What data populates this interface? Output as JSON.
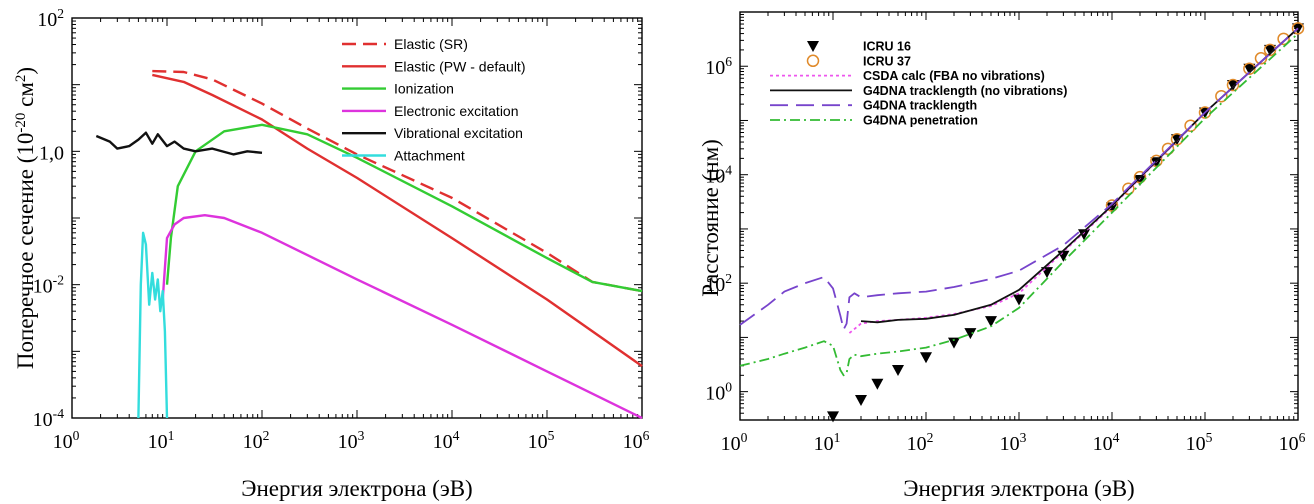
{
  "chart_data": [
    {
      "type": "line",
      "xlabel": "Энергия электрона (эВ)",
      "ylabel_main": "Поперечное сечение (10",
      "ylabel_sup": "-20",
      "ylabel_mid": " см",
      "ylabel_sup2": "2",
      "ylabel_end": ")",
      "x_scale": "log",
      "y_scale": "log",
      "xlim": [
        1,
        1000000
      ],
      "ylim": [
        0.0001,
        100
      ],
      "x_ticks": [
        {
          "base": "10",
          "exp": "0"
        },
        {
          "base": "10",
          "exp": "1"
        },
        {
          "base": "10",
          "exp": "2"
        },
        {
          "base": "10",
          "exp": "3"
        },
        {
          "base": "10",
          "exp": "4"
        },
        {
          "base": "10",
          "exp": "5"
        },
        {
          "base": "10",
          "exp": "6"
        }
      ],
      "y_ticks": [
        {
          "base": "10",
          "exp": "2"
        },
        {
          "base": "1,0",
          "exp": ""
        },
        {
          "base": "10",
          "exp": "-2"
        },
        {
          "base": "10",
          "exp": "-4"
        }
      ],
      "legend_position": "top-right",
      "series": [
        {
          "name": "Elastic (SR)",
          "color": "#e03030",
          "dash": "dashed",
          "x": [
            7,
            15,
            30,
            100,
            300,
            1000,
            10000,
            100000,
            300000,
            1000000
          ],
          "y": [
            16,
            15.5,
            12,
            5.2,
            2.2,
            0.9,
            0.2,
            0.03,
            0.011,
            0.008
          ]
        },
        {
          "name": "Elastic (PW - default)",
          "color": "#e03030",
          "dash": "solid",
          "x": [
            7,
            15,
            30,
            100,
            300,
            1000,
            10000,
            100000,
            1000000
          ],
          "y": [
            14,
            11,
            7,
            3,
            1.1,
            0.4,
            0.05,
            0.006,
            0.0006
          ]
        },
        {
          "name": "Ionization",
          "color": "#33cc33",
          "dash": "solid",
          "x": [
            10,
            11,
            13,
            20,
            40,
            100,
            300,
            1000,
            10000,
            100000,
            300000,
            1000000
          ],
          "y": [
            0.01,
            0.05,
            0.3,
            1,
            2,
            2.5,
            1.8,
            0.8,
            0.15,
            0.025,
            0.011,
            0.008
          ]
        },
        {
          "name": "Electronic excitation",
          "color": "#dd33dd",
          "dash": "solid",
          "x": [
            9,
            10,
            12,
            15,
            25,
            40,
            100,
            1000,
            10000,
            100000,
            1000000
          ],
          "y": [
            0.006,
            0.05,
            0.08,
            0.1,
            0.11,
            0.1,
            0.06,
            0.012,
            0.0025,
            0.0005,
            0.0001
          ]
        },
        {
          "name": "Vibrational excitation",
          "color": "#111111",
          "dash": "solid",
          "x": [
            1.8,
            2.5,
            3,
            4,
            5,
            6,
            7,
            8,
            10,
            12,
            15,
            20,
            30,
            50,
            70,
            100
          ],
          "y": [
            1.7,
            1.4,
            1.1,
            1.2,
            1.5,
            1.9,
            1.3,
            1.8,
            1.2,
            1.4,
            1.1,
            1.0,
            1.1,
            0.9,
            1.0,
            0.95
          ]
        },
        {
          "name": "Attachment",
          "color": "#33dddd",
          "dash": "solid",
          "x": [
            5,
            5.3,
            5.6,
            6,
            6.5,
            7,
            7.5,
            8,
            8.5,
            9,
            9.5,
            10
          ],
          "y": [
            0.0001,
            0.01,
            0.06,
            0.04,
            0.005,
            0.015,
            0.006,
            0.012,
            0.004,
            0.008,
            0.002,
            0.0001
          ]
        }
      ]
    },
    {
      "type": "line",
      "xlabel": "Энергия электрона (эВ)",
      "ylabel": "Расстояние (нм)",
      "x_scale": "log",
      "y_scale": "log",
      "xlim": [
        1,
        1000000
      ],
      "ylim": [
        0.3,
        10000000
      ],
      "x_ticks": [
        {
          "base": "10",
          "exp": "0"
        },
        {
          "base": "10",
          "exp": "1"
        },
        {
          "base": "10",
          "exp": "2"
        },
        {
          "base": "10",
          "exp": "3"
        },
        {
          "base": "10",
          "exp": "4"
        },
        {
          "base": "10",
          "exp": "5"
        },
        {
          "base": "10",
          "exp": "6"
        }
      ],
      "y_ticks": [
        {
          "base": "10",
          "exp": "0"
        },
        {
          "base": "10",
          "exp": "2"
        },
        {
          "base": "10",
          "exp": "4"
        },
        {
          "base": "10",
          "exp": "6"
        }
      ],
      "legend_position": "top-left",
      "series": [
        {
          "name": "ICRU 16",
          "color": "#000000",
          "marker": "triangle-down",
          "x": [
            10,
            20,
            30,
            50,
            100,
            200,
            300,
            500,
            1000,
            2000,
            3000,
            5000,
            10000,
            20000,
            30000,
            50000,
            100000,
            200000,
            300000,
            500000,
            1000000
          ],
          "y": [
            0.35,
            0.7,
            1.4,
            2.5,
            4.3,
            8,
            12,
            20,
            50,
            160,
            320,
            800,
            2500,
            8000,
            17000,
            45000,
            140000,
            450000,
            900000,
            2000000,
            5000000
          ]
        },
        {
          "name": "ICRU 37",
          "color": "#e08a2a",
          "marker": "circle-open",
          "x": [
            10000,
            15000,
            20000,
            30000,
            40000,
            50000,
            70000,
            100000,
            150000,
            200000,
            300000,
            400000,
            500000,
            700000,
            1000000
          ],
          "y": [
            2700,
            5500,
            9000,
            18000,
            30000,
            45000,
            80000,
            140000,
            280000,
            450000,
            900000,
            1400000,
            2000000,
            3200000,
            5000000
          ]
        },
        {
          "name": "CSDA calc (FBA no vibrations)",
          "color": "#ee55ee",
          "dash": "dotted",
          "x": [
            15,
            20,
            30,
            50,
            100,
            200,
            500,
            1000,
            3000,
            10000,
            100000,
            1000000
          ],
          "y": [
            12,
            18,
            20,
            21,
            23,
            27,
            38,
            65,
            380,
            2600,
            140000,
            5000000
          ]
        },
        {
          "name": "G4DNA tracklength (no vibrations)",
          "color": "#111111",
          "dash": "solid",
          "x": [
            20,
            30,
            50,
            100,
            200,
            500,
            1000,
            3000,
            10000,
            100000,
            1000000
          ],
          "y": [
            20,
            19,
            21,
            22,
            26,
            40,
            75,
            400,
            2700,
            140000,
            5000000
          ]
        },
        {
          "name": "G4DNA tracklength",
          "color": "#7744cc",
          "dash": "long-dash",
          "x": [
            1,
            2,
            3,
            5,
            8,
            10,
            12,
            13,
            14,
            15,
            17,
            20,
            30,
            50,
            100,
            200,
            500,
            1000,
            3000,
            10000,
            100000,
            1000000
          ],
          "y": [
            17,
            40,
            70,
            100,
            130,
            80,
            25,
            14,
            18,
            55,
            65,
            55,
            60,
            65,
            70,
            85,
            120,
            170,
            500,
            2900,
            140000,
            5000000
          ]
        },
        {
          "name": "G4DNA penetration",
          "color": "#33bb33",
          "dash": "dash-dot",
          "x": [
            1,
            2,
            3,
            5,
            8,
            10,
            12,
            13,
            14,
            15,
            17,
            20,
            30,
            50,
            100,
            200,
            500,
            1000,
            3000,
            10000,
            100000,
            1000000
          ],
          "y": [
            3,
            4,
            5,
            6.5,
            8.5,
            7,
            2.5,
            2,
            2.2,
            4,
            4.8,
            4.5,
            5,
            5.5,
            6.5,
            9,
            16,
            35,
            250,
            2000,
            110000,
            4000000
          ]
        }
      ]
    }
  ]
}
